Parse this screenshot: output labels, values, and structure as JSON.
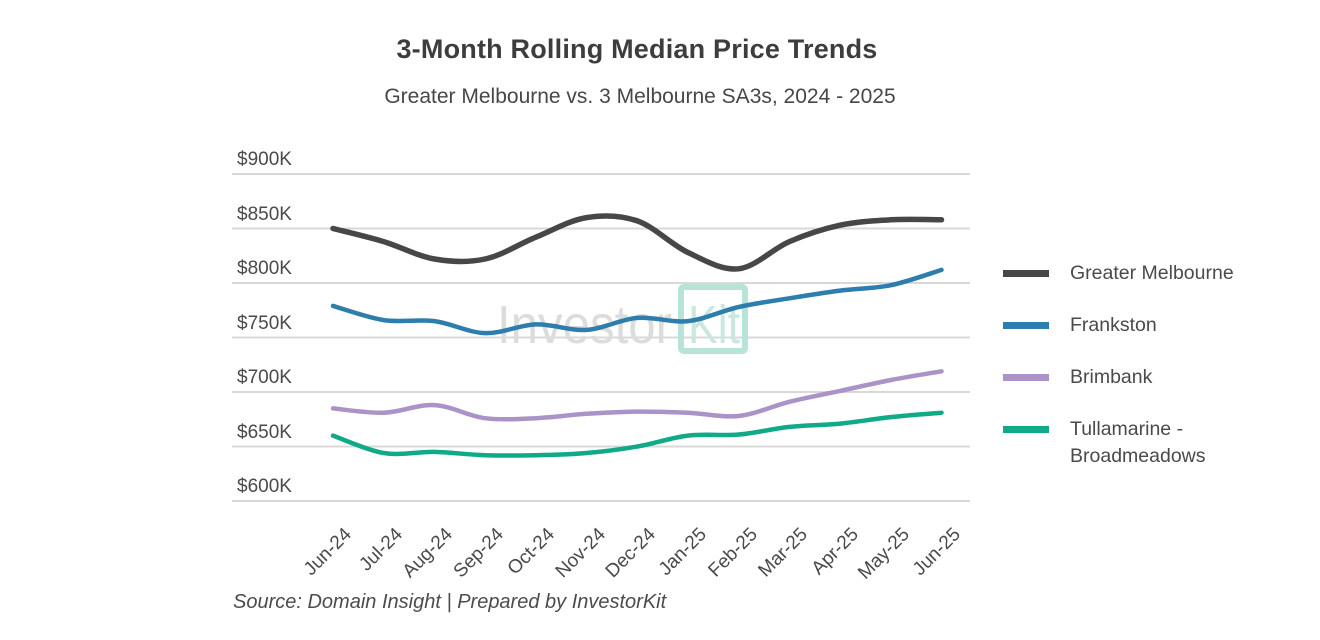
{
  "header": {
    "title": "3-Month Rolling Median Price Trends",
    "subtitle": "Greater Melbourne vs. 3 Melbourne SA3s, 2024 - 2025"
  },
  "watermark": {
    "part1": "Investor",
    "part2": "Kit"
  },
  "footer": {
    "source": "Source: Domain Insight | Prepared by InvestorKit"
  },
  "colors": {
    "greater_melbourne": "#474747",
    "frankston": "#2d7dad",
    "brimbank": "#ab93c8",
    "tullamarine_broadmeadows": "#10aa89",
    "gridline": "#d8d8d8",
    "axis_text": "#4a4a4a",
    "watermark_gray": "#dcdcdc",
    "watermark_teal_text": "#c9e8e0",
    "watermark_teal_box": "#b7e3d8"
  },
  "chart_data": {
    "type": "line",
    "title": "3-Month Rolling Median Price Trends",
    "subtitle": "Greater Melbourne vs. 3 Melbourne SA3s, 2024 - 2025",
    "x": [
      "Jun-24",
      "Jul-24",
      "Aug-24",
      "Sep-24",
      "Oct-24",
      "Nov-24",
      "Dec-24",
      "Jan-25",
      "Feb-25",
      "Mar-25",
      "Apr-25",
      "May-25",
      "Jun-25"
    ],
    "series": [
      {
        "name": "Greater Melbourne",
        "color": "#474747",
        "values": [
          850,
          838,
          822,
          822,
          842,
          860,
          857,
          828,
          813,
          838,
          853,
          858,
          858
        ]
      },
      {
        "name": "Frankston",
        "color": "#2d7dad",
        "values": [
          779,
          766,
          765,
          754,
          762,
          757,
          768,
          765,
          778,
          786,
          793,
          798,
          812
        ]
      },
      {
        "name": "Brimbank",
        "color": "#ab93c8",
        "values": [
          685,
          681,
          688,
          676,
          676,
          680,
          682,
          681,
          678,
          691,
          701,
          711,
          719
        ]
      },
      {
        "name": "Tullamarine - Broadmeadows",
        "color": "#10aa89",
        "values": [
          660,
          644,
          645,
          642,
          642,
          644,
          650,
          660,
          661,
          668,
          671,
          677,
          681
        ]
      }
    ],
    "ylim": [
      600,
      900
    ],
    "yticks": [
      900,
      850,
      800,
      750,
      700,
      650,
      600
    ],
    "ytick_labels": [
      "$900K",
      "$850K",
      "$800K",
      "$750K",
      "$700K",
      "$650K",
      "$600K"
    ],
    "grid": true,
    "legend_position": "right",
    "units": "AUD thousands (K)"
  }
}
